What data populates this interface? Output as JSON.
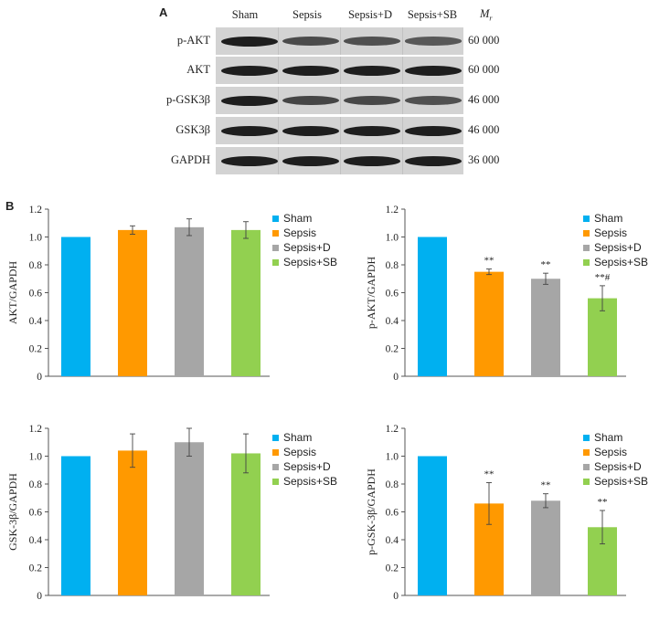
{
  "panel_a": {
    "label": "A",
    "lanes": [
      "Sham",
      "Sepsis",
      "Sepsis+D",
      "Sepsis+SB"
    ],
    "mw_header": "Mr",
    "rows": [
      {
        "protein": "p-AKT",
        "mw": "60 000",
        "intensity": [
          1.0,
          0.75,
          0.7,
          0.55
        ]
      },
      {
        "protein": "AKT",
        "mw": "60 000",
        "intensity": [
          1.0,
          1.0,
          1.0,
          1.0
        ]
      },
      {
        "protein": "p-GSK3β",
        "mw": "46 000",
        "intensity": [
          1.0,
          0.85,
          0.8,
          0.7
        ]
      },
      {
        "protein": "GSK3β",
        "mw": "46 000",
        "intensity": [
          1.0,
          1.0,
          1.0,
          1.0
        ]
      },
      {
        "protein": "GAPDH",
        "mw": "36 000",
        "intensity": [
          1.0,
          1.0,
          1.0,
          1.0
        ]
      }
    ]
  },
  "panel_b": {
    "label": "B"
  },
  "colors": {
    "Sham": "#00b0f0",
    "Sepsis": "#ff9900",
    "Sepsis+D": "#a6a6a6",
    "Sepsis+SB": "#92d050"
  },
  "chart_data": [
    {
      "type": "bar",
      "ylabel": "AKT/GAPDH",
      "categories": [
        "Sham",
        "Sepsis",
        "Sepsis+D",
        "Sepsis+SB"
      ],
      "values": [
        1.0,
        1.05,
        1.07,
        1.05
      ],
      "errors": [
        0,
        0.03,
        0.06,
        0.06
      ],
      "significance": [
        "",
        "",
        "",
        ""
      ],
      "ylim": [
        0,
        1.2
      ],
      "yticks": [
        "0",
        "0.2",
        "0.4",
        "0.6",
        "0.8",
        "1.0",
        "1.2"
      ],
      "legend": [
        "Sham",
        "Sepsis",
        "Sepsis+D",
        "Sepsis+SB"
      ]
    },
    {
      "type": "bar",
      "ylabel": "p-AKT/GAPDH",
      "categories": [
        "Sham",
        "Sepsis",
        "Sepsis+D",
        "Sepsis+SB"
      ],
      "values": [
        1.0,
        0.75,
        0.7,
        0.56
      ],
      "errors": [
        0,
        0.02,
        0.04,
        0.09
      ],
      "significance": [
        "",
        "**",
        "**",
        "**#"
      ],
      "ylim": [
        0,
        1.2
      ],
      "yticks": [
        "0",
        "0.2",
        "0.4",
        "0.6",
        "0.8",
        "1.0",
        "1.2"
      ],
      "legend": [
        "Sham",
        "Sepsis",
        "Sepsis+D",
        "Sepsis+SB"
      ]
    },
    {
      "type": "bar",
      "ylabel": "GSK-3β/GAPDH",
      "categories": [
        "Sham",
        "Sepsis",
        "Sepsis+D",
        "Sepsis+SB"
      ],
      "values": [
        1.0,
        1.04,
        1.1,
        1.02
      ],
      "errors": [
        0,
        0.12,
        0.1,
        0.14
      ],
      "significance": [
        "",
        "",
        "",
        ""
      ],
      "ylim": [
        0,
        1.2
      ],
      "yticks": [
        "0",
        "0.2",
        "0.4",
        "0.6",
        "0.8",
        "1.0",
        "1.2"
      ],
      "legend": [
        "Sham",
        "Sepsis",
        "Sepsis+D",
        "Sepsis+SB"
      ]
    },
    {
      "type": "bar",
      "ylabel": "p-GSK-3β/GAPDH",
      "categories": [
        "Sham",
        "Sepsis",
        "Sepsis+D",
        "Sepsis+SB"
      ],
      "values": [
        1.0,
        0.66,
        0.68,
        0.49
      ],
      "errors": [
        0,
        0.15,
        0.05,
        0.12
      ],
      "significance": [
        "",
        "**",
        "**",
        "**"
      ],
      "ylim": [
        0,
        1.2
      ],
      "yticks": [
        "0",
        "0.2",
        "0.4",
        "0.6",
        "0.8",
        "1.0",
        "1.2"
      ],
      "legend": [
        "Sham",
        "Sepsis",
        "Sepsis+D",
        "Sepsis+SB"
      ]
    }
  ]
}
